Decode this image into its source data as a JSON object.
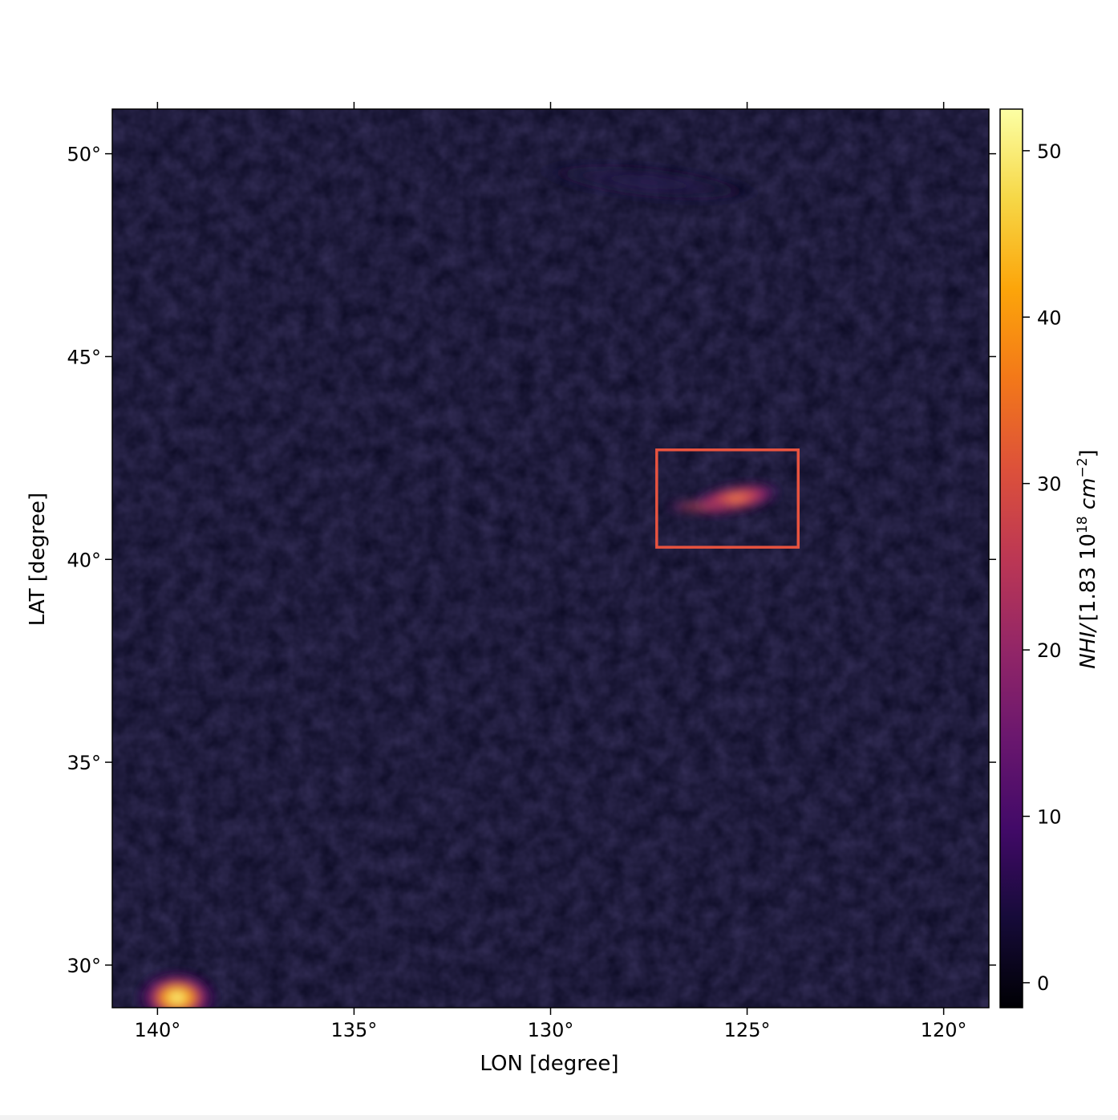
{
  "chart_data": {
    "type": "heatmap",
    "title": "",
    "xlabel": "LON [degree]",
    "ylabel": "LAT [degree]",
    "xlim": [
      141.15,
      118.85
    ],
    "ylim": [
      28.95,
      51.1
    ],
    "x_ticks": [
      140,
      135,
      130,
      125,
      120
    ],
    "x_tick_labels": [
      "140°",
      "135°",
      "130°",
      "125°",
      "120°"
    ],
    "y_ticks": [
      50,
      45,
      40,
      35,
      30
    ],
    "y_tick_labels": [
      "50°",
      "45°",
      "40°",
      "35°",
      "30°"
    ],
    "colormap": "inferno",
    "colorbar": {
      "label": "NHI/ [1.83 10^18 cm^-2]",
      "label_parts": {
        "quantity": "NHI/",
        "bracket_open": "[1.83 10",
        "exponent1": "18",
        "unit": " cm",
        "exponent2": "−2",
        "bracket_close": "]"
      },
      "range": [
        -1.5,
        52.5
      ],
      "ticks": [
        0,
        10,
        20,
        30,
        40,
        50
      ],
      "tick_labels": [
        "0",
        "10",
        "20",
        "30",
        "40",
        "50"
      ]
    },
    "features": [
      {
        "name": "bright cloud",
        "lon": 139.5,
        "lat": 29.2,
        "peak": 52
      },
      {
        "name": "boxed cloud",
        "lon": 125.3,
        "lat": 41.5,
        "peak": 33
      },
      {
        "name": "faint filament",
        "lon": 127.5,
        "lat": 49.3,
        "peak": 3
      }
    ],
    "highlight_box": {
      "lon": [
        127.3,
        123.7
      ],
      "lat": [
        40.3,
        42.7
      ],
      "color": "#e8533f"
    },
    "grid": false
  }
}
